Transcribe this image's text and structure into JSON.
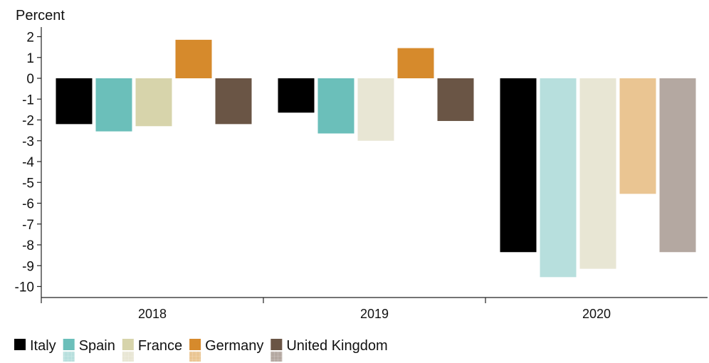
{
  "chart_data": {
    "type": "bar",
    "title": "",
    "xlabel": "",
    "ylabel": "Percent",
    "ylim": [
      -10,
      2
    ],
    "yticks": [
      2,
      1,
      0,
      -1,
      -2,
      -3,
      -4,
      -5,
      -6,
      -7,
      -8,
      -9,
      -10
    ],
    "grid": false,
    "legend_position": "bottom-left",
    "categories": [
      "2018",
      "2019",
      "2020"
    ],
    "series": [
      {
        "name": "Italy",
        "color": "#000000",
        "values": [
          -2.2,
          -1.65,
          -8.35
        ]
      },
      {
        "name": "Spain",
        "color": "#6bbfba",
        "values": [
          -2.55,
          -2.65,
          -9.55
        ]
      },
      {
        "name": "France",
        "color": "#d7d4ab",
        "values": [
          -2.3,
          -3.0,
          -9.15
        ]
      },
      {
        "name": "Germany",
        "color": "#d68a2c",
        "values": [
          1.85,
          1.45,
          -5.55
        ]
      },
      {
        "name": "United Kingdom",
        "color": "#6a5545",
        "values": [
          -2.2,
          -2.05,
          -8.35
        ]
      }
    ],
    "highlight_last_category_lighter": true,
    "light_colors": [
      "#000000",
      "#b7dfdd",
      "#e8e6d4",
      "#eac592",
      "#b4a8a1"
    ],
    "light_colors_2019": [
      "#000000",
      "#6bbfba",
      "#e8e6d4",
      "#d68a2c",
      "#6a5545"
    ]
  }
}
